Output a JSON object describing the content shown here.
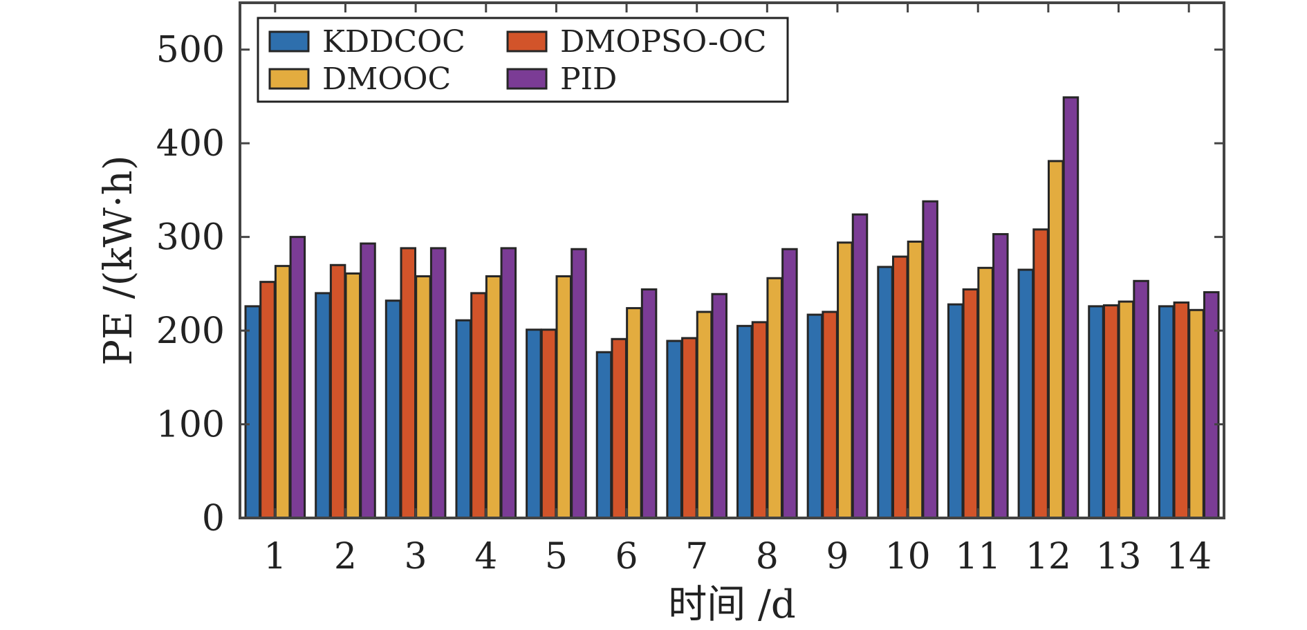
{
  "chart_data": {
    "type": "bar",
    "title": "",
    "xlabel": "时间 /d",
    "ylabel": "PE /(kW·h)",
    "ylim": [
      0,
      550
    ],
    "yticks": [
      0,
      100,
      200,
      300,
      400,
      500
    ],
    "grid": false,
    "legend_position": "top-left",
    "categories": [
      "1",
      "2",
      "3",
      "4",
      "5",
      "6",
      "7",
      "8",
      "9",
      "10",
      "11",
      "12",
      "13",
      "14"
    ],
    "series": [
      {
        "name": "KDDCOC",
        "color": "#2e6fad",
        "values": [
          226,
          240,
          232,
          211,
          201,
          177,
          189,
          205,
          217,
          268,
          228,
          265,
          226,
          226
        ]
      },
      {
        "name": "DMOPSO-OC",
        "color": "#d2542a",
        "values": [
          252,
          270,
          288,
          240,
          201,
          191,
          192,
          209,
          220,
          279,
          244,
          308,
          227,
          230
        ]
      },
      {
        "name": "DMOOC",
        "color": "#e3ac3f",
        "values": [
          269,
          261,
          258,
          258,
          258,
          224,
          220,
          256,
          294,
          295,
          267,
          381,
          231,
          222
        ]
      },
      {
        "name": "PID",
        "color": "#7b3c95",
        "values": [
          300,
          293,
          288,
          288,
          287,
          244,
          239,
          287,
          324,
          338,
          303,
          449,
          253,
          241
        ]
      }
    ]
  }
}
